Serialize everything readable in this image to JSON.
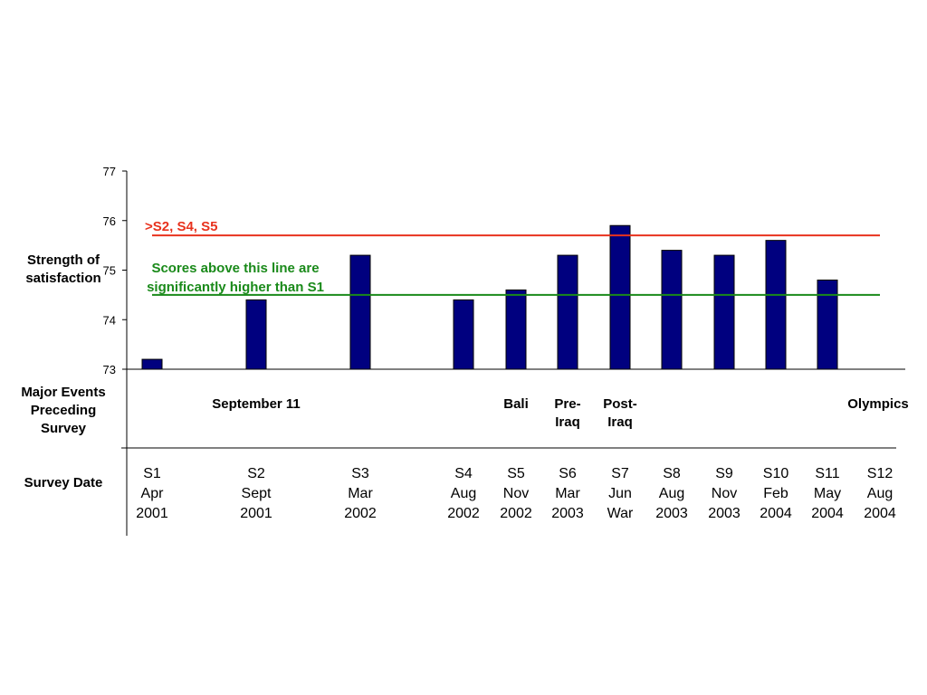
{
  "chart_data": {
    "type": "bar",
    "categories": [
      "S1",
      "S2",
      "S3",
      "S4",
      "S5",
      "S6",
      "S7",
      "S8",
      "S9",
      "S10",
      "S11",
      "S12"
    ],
    "values": [
      73.2,
      74.4,
      75.3,
      74.4,
      74.6,
      75.3,
      75.9,
      75.4,
      75.3,
      75.6,
      74.8,
      null
    ],
    "ylabel": "Strength of satisfaction",
    "ylim": [
      73,
      77
    ],
    "yticks": [
      "73",
      "74",
      "75",
      "76",
      "77"
    ],
    "bar_color": "#00007f",
    "reference_lines": [
      {
        "value": 75.7,
        "color": "#e8321e",
        "label": ">S2, S4, S5"
      },
      {
        "value": 74.5,
        "color": "#1a8a1a",
        "label": "Scores above this line are significantly higher than S1"
      }
    ],
    "events_row_label": "Major Events Preceding Survey",
    "events": [
      {
        "category": "S2",
        "text": "September 11"
      },
      {
        "category": "S5",
        "text": "Bali"
      },
      {
        "category": "S6",
        "text": "Pre-Iraq"
      },
      {
        "category": "S7",
        "text": "Post-Iraq"
      },
      {
        "category": "S12",
        "text": "Olympics"
      }
    ],
    "date_row_label": "Survey Date",
    "dates": [
      {
        "s": "S1",
        "m": "Apr",
        "y": "2001"
      },
      {
        "s": "S2",
        "m": "Sept",
        "y": "2001"
      },
      {
        "s": "S3",
        "m": "Mar",
        "y": "2002"
      },
      {
        "s": "S4",
        "m": "Aug",
        "y": "2002"
      },
      {
        "s": "S5",
        "m": "Nov",
        "y": "2002"
      },
      {
        "s": "S6",
        "m": "Mar",
        "y": "2003"
      },
      {
        "s": "S7",
        "m": "Jun",
        "y": "War"
      },
      {
        "s": "S8",
        "m": "Aug",
        "y": "2003"
      },
      {
        "s": "S9",
        "m": "Nov",
        "y": "2003"
      },
      {
        "s": "S10",
        "m": "Feb",
        "y": "2004"
      },
      {
        "s": "S11",
        "m": "May",
        "y": "2004"
      },
      {
        "s": "S12",
        "m": "Aug",
        "y": "2004"
      }
    ]
  }
}
